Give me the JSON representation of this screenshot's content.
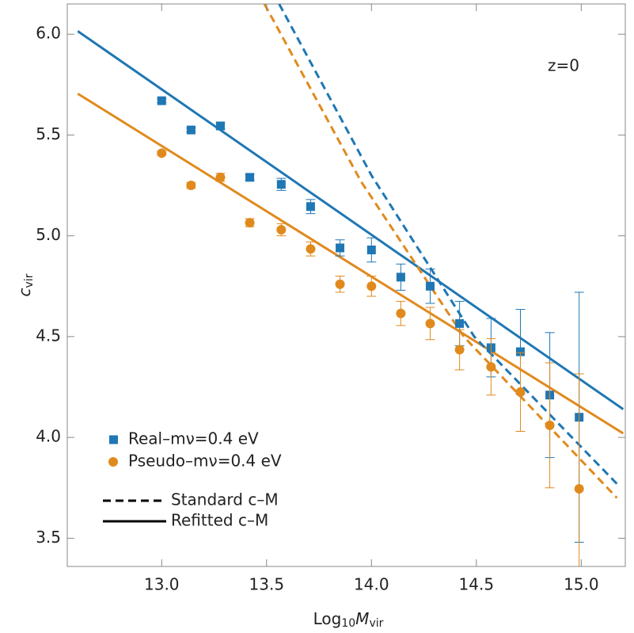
{
  "chart_data": {
    "type": "scatter",
    "annotation": "z=0",
    "x_label": [
      "Log",
      "10",
      "M",
      "vir"
    ],
    "y_label": [
      "c",
      "vir"
    ],
    "xlim": [
      12.55,
      15.21
    ],
    "ylim": [
      3.36,
      6.15
    ],
    "xticks": [
      {
        "value": 13,
        "label": "13.0"
      },
      13.5,
      {
        "value": 14,
        "label": "14.0"
      },
      14.5,
      {
        "value": 15,
        "label": "15.0"
      }
    ],
    "yticks": [
      3.5,
      {
        "value": 4,
        "label": "4.0"
      },
      4.5,
      {
        "value": 5,
        "label": "5.0"
      },
      5.5,
      {
        "value": 6,
        "label": "6.0"
      }
    ],
    "series": [
      {
        "name": "Real–mν=0.4 eV",
        "color": "#1f77b4",
        "marker": "square",
        "x": [
          13.0,
          13.14,
          13.28,
          13.42,
          13.57,
          13.71,
          13.85,
          14.0,
          14.14,
          14.28,
          14.42,
          14.57,
          14.71,
          14.85,
          14.99
        ],
        "values": [
          5.67,
          5.525,
          5.545,
          5.29,
          5.255,
          5.145,
          4.94,
          4.93,
          4.795,
          4.75,
          4.565,
          4.445,
          4.425,
          4.21,
          4.1
        ],
        "errors": [
          0.01,
          0.01,
          0.015,
          0.015,
          0.03,
          0.035,
          0.04,
          0.06,
          0.065,
          0.085,
          0.11,
          0.145,
          0.21,
          0.31,
          0.62
        ]
      },
      {
        "name": "Pseudo–mν=0.4 eV",
        "color": "#e08a1e",
        "marker": "circle",
        "x": [
          13.0,
          13.14,
          13.28,
          13.42,
          13.57,
          13.71,
          13.85,
          14.0,
          14.14,
          14.28,
          14.42,
          14.57,
          14.71,
          14.85,
          14.99
        ],
        "values": [
          5.41,
          5.25,
          5.29,
          5.065,
          5.03,
          4.935,
          4.76,
          4.75,
          4.615,
          4.565,
          4.435,
          4.35,
          4.225,
          4.06,
          3.745
        ],
        "errors": [
          0.01,
          0.015,
          0.02,
          0.02,
          0.03,
          0.035,
          0.04,
          0.05,
          0.06,
          0.08,
          0.1,
          0.14,
          0.195,
          0.31,
          0.57
        ]
      }
    ],
    "lines": [
      {
        "color": "#1f77b4",
        "dashed": false,
        "x": [
          12.6,
          15.2
        ],
        "values": [
          6.015,
          4.14
        ]
      },
      {
        "color": "#e08a1e",
        "dashed": false,
        "x": [
          12.6,
          15.2
        ],
        "values": [
          5.705,
          4.02
        ]
      },
      {
        "color": "#1f77b4",
        "dashed": true,
        "x": [
          13.56,
          14.0,
          14.49,
          15.17
        ],
        "values": [
          6.15,
          5.3,
          4.5,
          3.77
        ]
      },
      {
        "color": "#e08a1e",
        "dashed": true,
        "x": [
          13.49,
          13.95,
          14.44,
          15.17
        ],
        "values": [
          6.15,
          5.27,
          4.5,
          3.7
        ]
      }
    ],
    "line_legend": [
      {
        "name": "Standard c–M",
        "dashed": true
      },
      {
        "name": "Refitted c–M",
        "dashed": false
      }
    ]
  }
}
